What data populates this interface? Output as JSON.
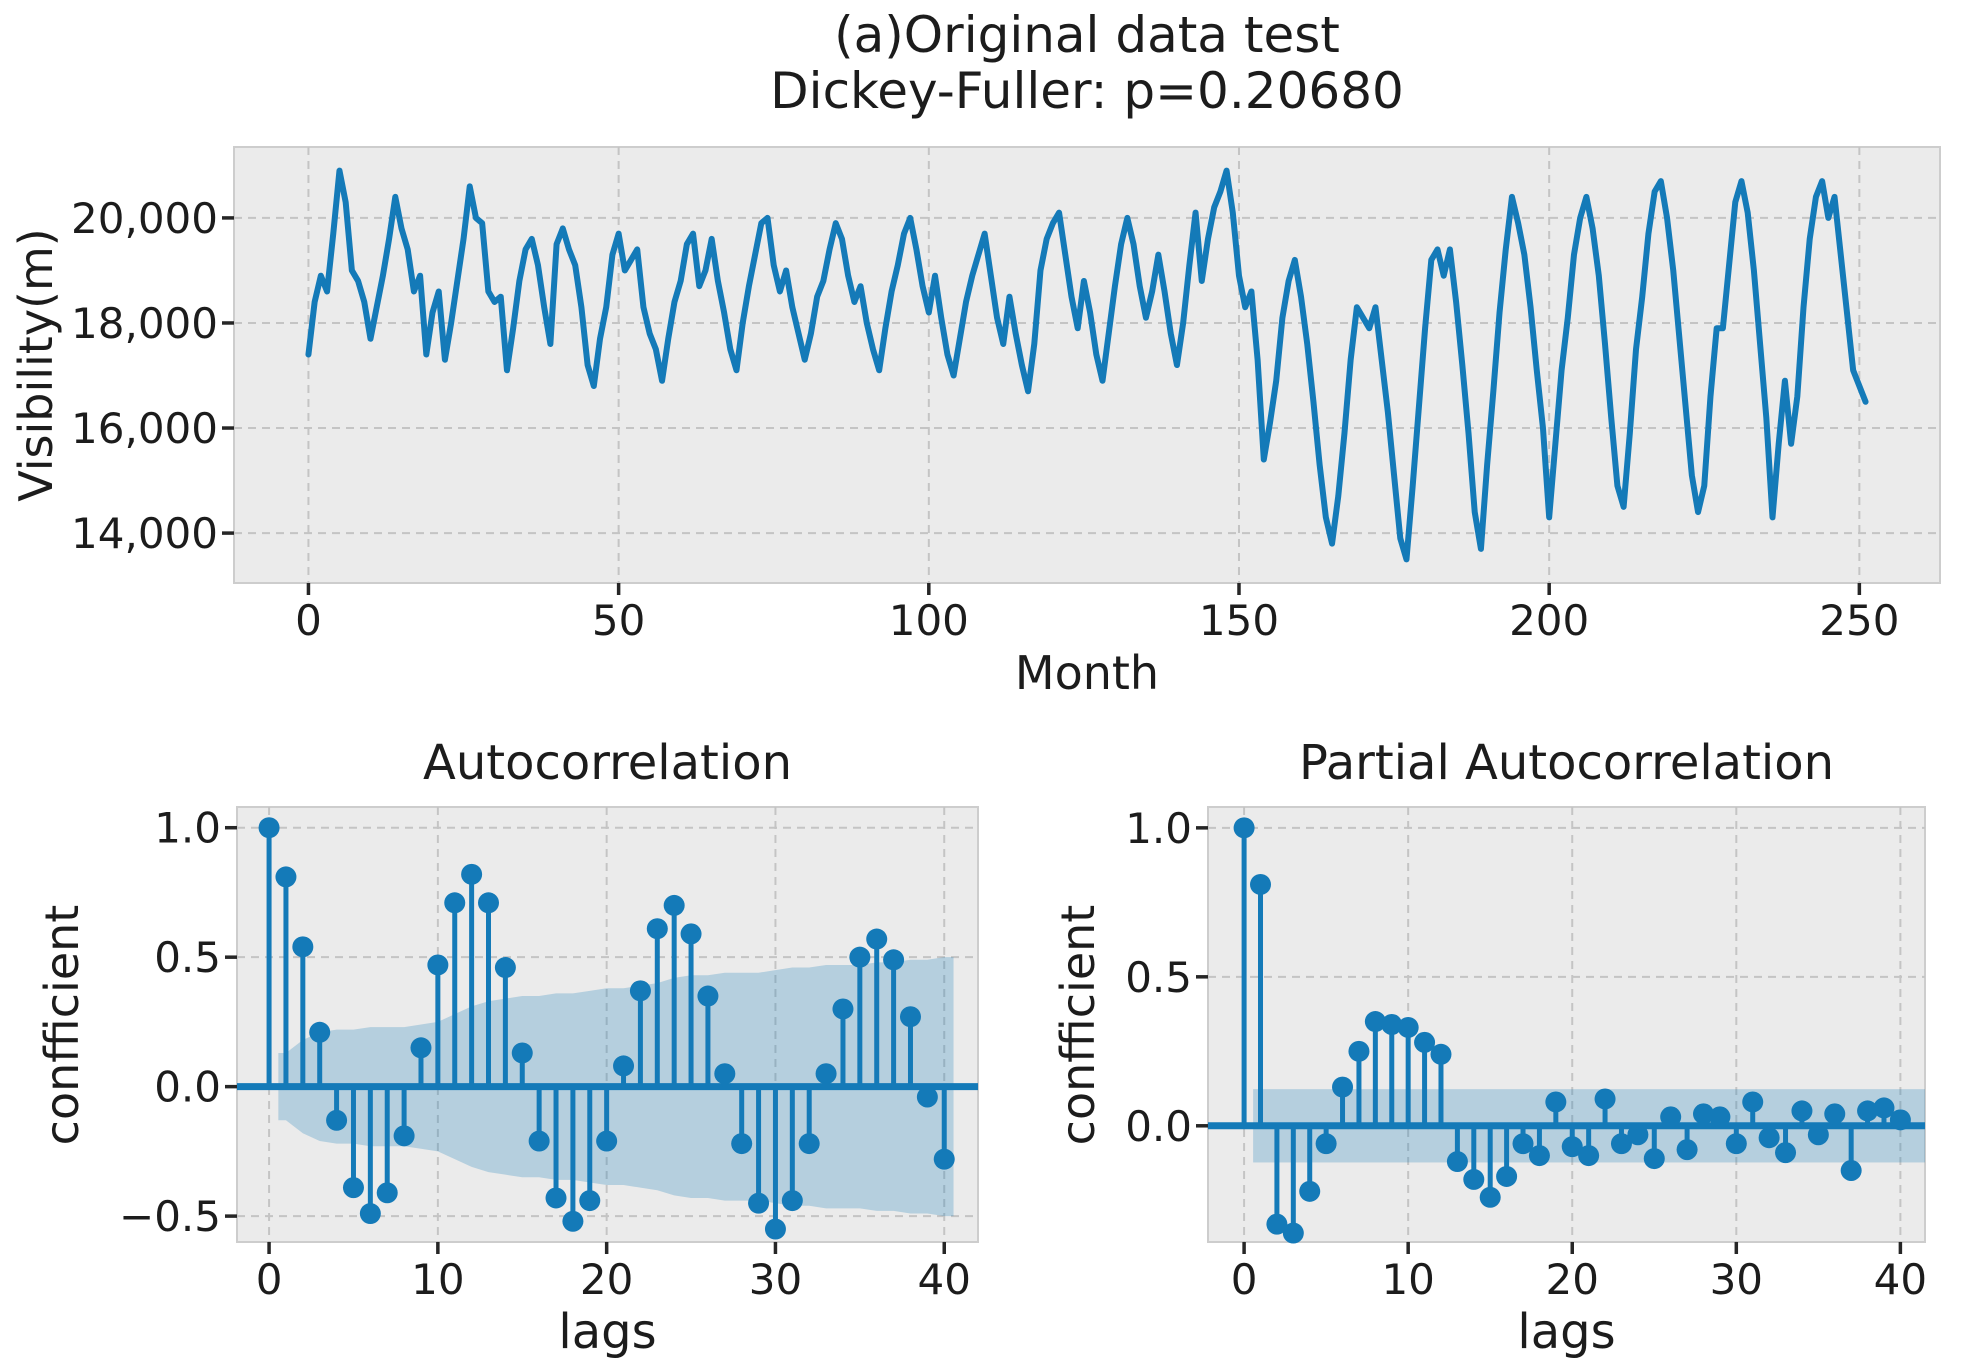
{
  "colors": {
    "series": "#147ab8",
    "band_fill": "#147ab8",
    "panel_bg": "#ebebeb",
    "panel_edge": "#cdcdcd",
    "grid": "#c4c4c4",
    "text": "#1c1c1c",
    "tick": "#262626"
  },
  "chart_data": [
    {
      "type": "line",
      "title_line1": "(a)Original data test",
      "title_line2": "Dickey-Fuller: p=0.20680",
      "xlabel": "Month",
      "ylabel": "Visibility(m)",
      "grid": true,
      "legend": "none",
      "xlim": [
        -12,
        263
      ],
      "ylim": [
        13050,
        21350
      ],
      "x_start": 0,
      "x_step": 1,
      "xticks": [
        {
          "v": 0,
          "label": "0"
        },
        {
          "v": 50,
          "label": "50"
        },
        {
          "v": 100,
          "label": "100"
        },
        {
          "v": 150,
          "label": "150"
        },
        {
          "v": 200,
          "label": "200"
        },
        {
          "v": 250,
          "label": "250"
        }
      ],
      "yticks": [
        {
          "v": 20000,
          "label": "20,000"
        },
        {
          "v": 18000,
          "label": "18,000"
        },
        {
          "v": 16000,
          "label": "16,000"
        },
        {
          "v": 14000,
          "label": "14,000"
        }
      ],
      "values": [
        17400,
        18400,
        18900,
        18600,
        19700,
        20900,
        20300,
        19000,
        18800,
        18400,
        17700,
        18300,
        18900,
        19600,
        20400,
        19800,
        19400,
        18600,
        18900,
        17400,
        18200,
        18600,
        17300,
        18000,
        18800,
        19600,
        20600,
        20000,
        19900,
        18600,
        18400,
        18500,
        17100,
        17900,
        18800,
        19400,
        19600,
        19100,
        18300,
        17600,
        19500,
        19800,
        19400,
        19100,
        18300,
        17200,
        16800,
        17700,
        18300,
        19300,
        19700,
        19000,
        19200,
        19400,
        18300,
        17800,
        17500,
        16900,
        17700,
        18400,
        18800,
        19500,
        19700,
        18700,
        19000,
        19600,
        18800,
        18200,
        17500,
        17100,
        18000,
        18700,
        19300,
        19900,
        20000,
        19100,
        18600,
        19000,
        18300,
        17800,
        17300,
        17800,
        18500,
        18800,
        19400,
        19900,
        19600,
        18900,
        18400,
        18700,
        18000,
        17500,
        17100,
        17900,
        18600,
        19100,
        19700,
        20000,
        19400,
        18700,
        18200,
        18900,
        18100,
        17400,
        17000,
        17700,
        18400,
        18900,
        19300,
        19700,
        18900,
        18100,
        17600,
        18500,
        17800,
        17200,
        16700,
        17600,
        19000,
        19600,
        19900,
        20100,
        19300,
        18500,
        17900,
        18800,
        18200,
        17400,
        16900,
        17800,
        18700,
        19500,
        20000,
        19500,
        18700,
        18100,
        18600,
        19300,
        18600,
        17800,
        17200,
        18000,
        19100,
        20100,
        18800,
        19600,
        20200,
        20500,
        20900,
        20100,
        18900,
        18300,
        18600,
        17300,
        15400,
        16100,
        16900,
        18100,
        18800,
        19200,
        18500,
        17600,
        16500,
        15300,
        14300,
        13800,
        14700,
        15900,
        17300,
        18300,
        18100,
        17900,
        18300,
        17300,
        16300,
        15100,
        13900,
        13500,
        14900,
        16400,
        17900,
        19200,
        19400,
        18900,
        19400,
        18400,
        17200,
        15900,
        14400,
        13700,
        15300,
        16700,
        18200,
        19400,
        20400,
        19900,
        19300,
        18300,
        17100,
        16000,
        14300,
        15700,
        17100,
        18100,
        19300,
        20000,
        20400,
        19800,
        18900,
        17600,
        16200,
        14900,
        14500,
        15900,
        17500,
        18500,
        19700,
        20500,
        20700,
        20000,
        19000,
        17700,
        16400,
        15100,
        14400,
        14900,
        16600,
        17900,
        17900,
        19100,
        20300,
        20700,
        20100,
        19000,
        17600,
        16200,
        14300,
        15700,
        16900,
        15700,
        16600,
        18300,
        19600,
        20400,
        20700,
        20000,
        20400,
        19300,
        18200,
        17100,
        16800,
        16500
      ]
    },
    {
      "type": "stem",
      "title": "Autocorrelation",
      "xlabel": "lags",
      "ylabel": "confficient",
      "grid": true,
      "legend": "none",
      "xlim": [
        -1.9,
        42.0
      ],
      "ylim": [
        -0.6,
        1.08
      ],
      "xticks": [
        {
          "v": 0,
          "label": "0"
        },
        {
          "v": 10,
          "label": "10"
        },
        {
          "v": 20,
          "label": "20"
        },
        {
          "v": 30,
          "label": "30"
        },
        {
          "v": 40,
          "label": "40"
        }
      ],
      "yticks": [
        {
          "v": 1.0,
          "label": "1.0"
        },
        {
          "v": 0.5,
          "label": "0.5"
        },
        {
          "v": 0.0,
          "label": "0.0"
        },
        {
          "v": -0.5,
          "label": "−0.5"
        }
      ],
      "values": [
        1.0,
        0.81,
        0.54,
        0.21,
        -0.13,
        -0.39,
        -0.49,
        -0.41,
        -0.19,
        0.15,
        0.47,
        0.71,
        0.82,
        0.71,
        0.46,
        0.13,
        -0.21,
        -0.43,
        -0.52,
        -0.44,
        -0.21,
        0.08,
        0.37,
        0.61,
        0.7,
        0.59,
        0.35,
        0.05,
        -0.22,
        -0.45,
        -0.55,
        -0.44,
        -0.22,
        0.05,
        0.3,
        0.5,
        0.57,
        0.49,
        0.27,
        -0.04,
        -0.28
      ],
      "conf_band": {
        "shape": "bartlett",
        "half_widths": [
          0,
          0.13,
          0.18,
          0.21,
          0.22,
          0.22,
          0.23,
          0.23,
          0.23,
          0.24,
          0.25,
          0.28,
          0.31,
          0.33,
          0.34,
          0.35,
          0.35,
          0.36,
          0.36,
          0.37,
          0.38,
          0.38,
          0.39,
          0.4,
          0.42,
          0.43,
          0.43,
          0.44,
          0.44,
          0.44,
          0.45,
          0.46,
          0.46,
          0.47,
          0.47,
          0.47,
          0.48,
          0.48,
          0.49,
          0.49,
          0.5
        ]
      }
    },
    {
      "type": "stem",
      "title": "Partial Autocorrelation",
      "xlabel": "lags",
      "ylabel": "confficient",
      "grid": true,
      "legend": "none",
      "xlim": [
        -2.2,
        41.5
      ],
      "ylim": [
        -0.39,
        1.07
      ],
      "xticks": [
        {
          "v": 0,
          "label": "0"
        },
        {
          "v": 10,
          "label": "10"
        },
        {
          "v": 20,
          "label": "20"
        },
        {
          "v": 30,
          "label": "30"
        },
        {
          "v": 40,
          "label": "40"
        }
      ],
      "yticks": [
        {
          "v": 1.0,
          "label": "1.0"
        },
        {
          "v": 0.5,
          "label": "0.5"
        },
        {
          "v": 0.0,
          "label": "0.0"
        }
      ],
      "values": [
        1.0,
        0.81,
        -0.33,
        -0.36,
        -0.22,
        -0.06,
        0.13,
        0.25,
        0.35,
        0.34,
        0.33,
        0.28,
        0.24,
        -0.12,
        -0.18,
        -0.24,
        -0.17,
        -0.06,
        -0.1,
        0.08,
        -0.07,
        -0.1,
        0.09,
        -0.06,
        -0.03,
        -0.11,
        0.03,
        -0.08,
        0.04,
        0.03,
        -0.06,
        0.08,
        -0.04,
        -0.09,
        0.05,
        -0.03,
        0.04,
        -0.15,
        0.05,
        0.06,
        0.02
      ],
      "conf_band": {
        "shape": "constant",
        "half_width": 0.123
      }
    }
  ]
}
